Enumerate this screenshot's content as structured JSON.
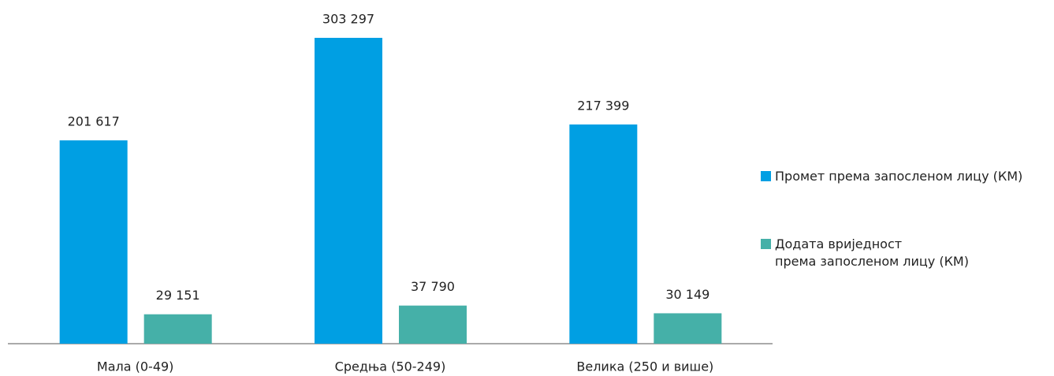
{
  "chart_data": {
    "type": "bar",
    "categories": [
      "Мала (0-49)",
      "Средња (50-249)",
      "Велика (250 и више)"
    ],
    "series": [
      {
        "name": "Промет према запосленом лицу (КМ)",
        "color": "#009fe3",
        "values": [
          201617,
          303297,
          217399
        ],
        "value_labels": [
          "201 617",
          "303 297",
          "217 399"
        ]
      },
      {
        "name": "Додата вриједност\nпрема запосленом лицу (КМ)",
        "color": "#45b0a8",
        "values": [
          29151,
          37790,
          30149
        ],
        "value_labels": [
          "29 151",
          "37 790",
          "30 149"
        ]
      }
    ],
    "ylim": [
      0,
      350000
    ],
    "legend": "right"
  }
}
